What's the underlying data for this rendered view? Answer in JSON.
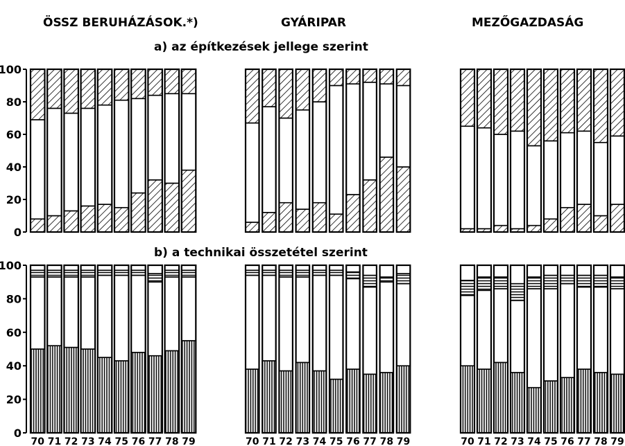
{
  "titles": {
    "col1": "ÖSSZ BERUHÁZÁSOK.*)",
    "col2": "GYÁRIPAR",
    "col3": "MEZŐGAZDASÁG",
    "section_a": "a) az építkezések jellege szerint",
    "section_b": "b) a technikai összetétel szerint"
  },
  "chart_data": [
    {
      "id": "a-ossz",
      "type": "bar",
      "stacked": true,
      "section": "a",
      "column": "ÖSSZ BERUHÁZÁSOK.*)",
      "categories": [
        "70",
        "71",
        "72",
        "73",
        "74",
        "75",
        "76",
        "77",
        "78",
        "79"
      ],
      "ylim": [
        0,
        100
      ],
      "yticks": [
        0,
        20,
        40,
        60,
        80,
        100
      ],
      "boundaries": [
        [
          8,
          69
        ],
        [
          10,
          76
        ],
        [
          13,
          73
        ],
        [
          16,
          76
        ],
        [
          17,
          78
        ],
        [
          15,
          81
        ],
        [
          24,
          82
        ],
        [
          32,
          84
        ],
        [
          30,
          85
        ],
        [
          38,
          85
        ]
      ]
    },
    {
      "id": "a-gyar",
      "type": "bar",
      "stacked": true,
      "section": "a",
      "column": "GYÁRIPAR",
      "categories": [
        "70",
        "71",
        "72",
        "73",
        "74",
        "75",
        "76",
        "77",
        "78",
        "79"
      ],
      "ylim": [
        0,
        100
      ],
      "boundaries": [
        [
          6,
          67
        ],
        [
          12,
          77
        ],
        [
          18,
          70
        ],
        [
          14,
          75
        ],
        [
          18,
          80
        ],
        [
          11,
          90
        ],
        [
          23,
          91
        ],
        [
          32,
          92
        ],
        [
          46,
          91
        ],
        [
          40,
          90
        ]
      ]
    },
    {
      "id": "a-mezo",
      "type": "bar",
      "stacked": true,
      "section": "a",
      "column": "MEZŐGAZDASÁG",
      "categories": [
        "70",
        "71",
        "72",
        "73",
        "74",
        "75",
        "76",
        "77",
        "78",
        "79"
      ],
      "ylim": [
        0,
        100
      ],
      "boundaries": [
        [
          2,
          65
        ],
        [
          2,
          64
        ],
        [
          4,
          60
        ],
        [
          2,
          62
        ],
        [
          4,
          53
        ],
        [
          8,
          56
        ],
        [
          15,
          61
        ],
        [
          17,
          62
        ],
        [
          10,
          55
        ],
        [
          17,
          59
        ]
      ]
    },
    {
      "id": "b-ossz",
      "type": "bar",
      "stacked": true,
      "section": "b",
      "column": "ÖSSZ BERUHÁZÁSOK.*)",
      "categories": [
        "70",
        "71",
        "72",
        "73",
        "74",
        "75",
        "76",
        "77",
        "78",
        "79"
      ],
      "ylim": [
        0,
        100
      ],
      "yticks": [
        0,
        20,
        40,
        60,
        80,
        100
      ],
      "boundaries": [
        [
          50,
          93,
          97
        ],
        [
          52,
          93,
          97
        ],
        [
          51,
          93,
          97
        ],
        [
          50,
          93,
          97
        ],
        [
          45,
          94,
          97
        ],
        [
          43,
          94,
          97
        ],
        [
          48,
          94,
          97
        ],
        [
          46,
          90,
          95
        ],
        [
          49,
          93,
          97
        ],
        [
          55,
          93,
          97
        ]
      ]
    },
    {
      "id": "b-gyar",
      "type": "bar",
      "stacked": true,
      "section": "b",
      "column": "GYÁRIPAR",
      "categories": [
        "70",
        "71",
        "72",
        "73",
        "74",
        "75",
        "76",
        "77",
        "78",
        "79"
      ],
      "ylim": [
        0,
        100
      ],
      "boundaries": [
        [
          38,
          94,
          97
        ],
        [
          43,
          94,
          97
        ],
        [
          37,
          93,
          97
        ],
        [
          42,
          93,
          97
        ],
        [
          37,
          94,
          97
        ],
        [
          32,
          94,
          97
        ],
        [
          38,
          92,
          96
        ],
        [
          35,
          87,
          94
        ],
        [
          36,
          90,
          93
        ],
        [
          40,
          89,
          95
        ]
      ]
    },
    {
      "id": "b-mezo",
      "type": "bar",
      "stacked": true,
      "section": "b",
      "column": "MEZŐGAZDASÁG",
      "categories": [
        "70",
        "71",
        "72",
        "73",
        "74",
        "75",
        "76",
        "77",
        "78",
        "79"
      ],
      "ylim": [
        0,
        100
      ],
      "boundaries": [
        [
          40,
          82,
          91
        ],
        [
          38,
          85,
          93
        ],
        [
          42,
          86,
          93
        ],
        [
          36,
          79,
          89
        ],
        [
          27,
          86,
          93
        ],
        [
          31,
          86,
          94
        ],
        [
          33,
          89,
          94
        ],
        [
          38,
          87,
          94
        ],
        [
          36,
          87,
          94
        ],
        [
          35,
          86,
          93
        ]
      ]
    }
  ]
}
